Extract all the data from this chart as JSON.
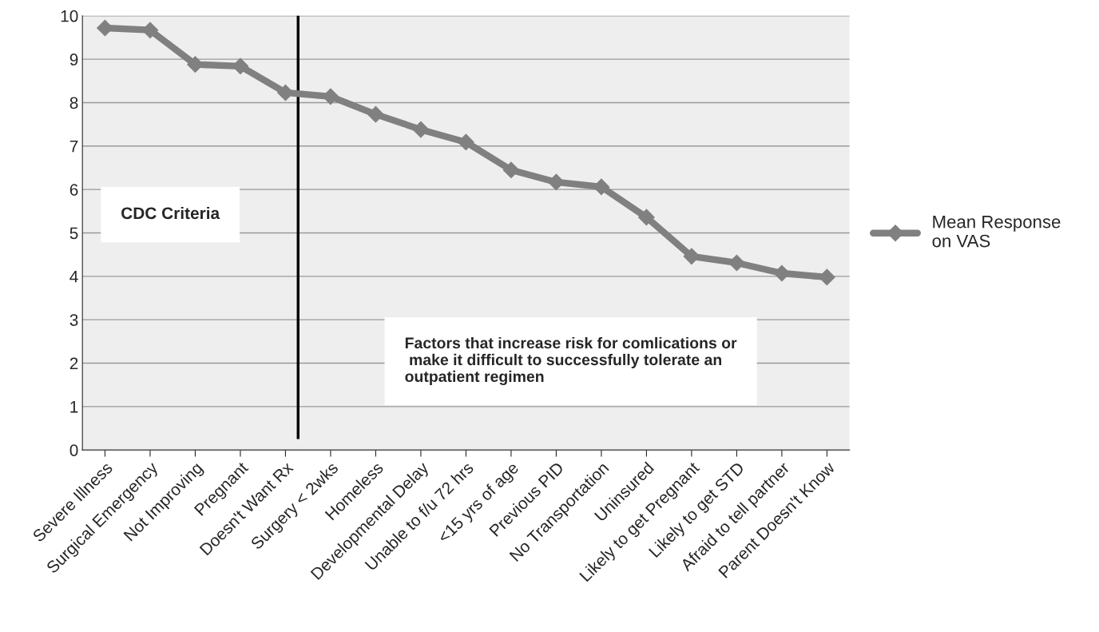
{
  "chart_data": {
    "type": "line",
    "categories": [
      "Severe Illness",
      "Surgical Emergency",
      "Not Improving",
      "Pregnant",
      "Doesn't Want Rx",
      "Surgery < 2wks",
      "Homeless",
      "Developmental Delay",
      "Unable to f/u 72 hrs",
      "<15 yrs of age",
      "Previous PID",
      "No Transportation",
      "Uninsured",
      "Likely to get Pregnant",
      "Likely to get STD",
      "Afraid to tell partner",
      "Parent Doesn't Know"
    ],
    "series": [
      {
        "name": "Mean Response\non VAS",
        "color": "#808080",
        "values": [
          9.72,
          9.67,
          8.88,
          8.84,
          8.23,
          8.14,
          7.73,
          7.38,
          7.09,
          6.45,
          6.17,
          6.06,
          5.36,
          4.46,
          4.31,
          4.07,
          3.98
        ]
      }
    ],
    "ylim": [
      0,
      10
    ],
    "yticks": [
      0,
      1,
      2,
      3,
      4,
      5,
      6,
      7,
      8,
      9,
      10
    ],
    "grid": "y",
    "legend": "right",
    "marker": "diamond",
    "line_style": "solid",
    "annotations": [
      "CDC Criteria",
      "Factors that increase risk for comlications or\n make it difficult to successfully tolerate an\noutpatient regimen"
    ]
  }
}
